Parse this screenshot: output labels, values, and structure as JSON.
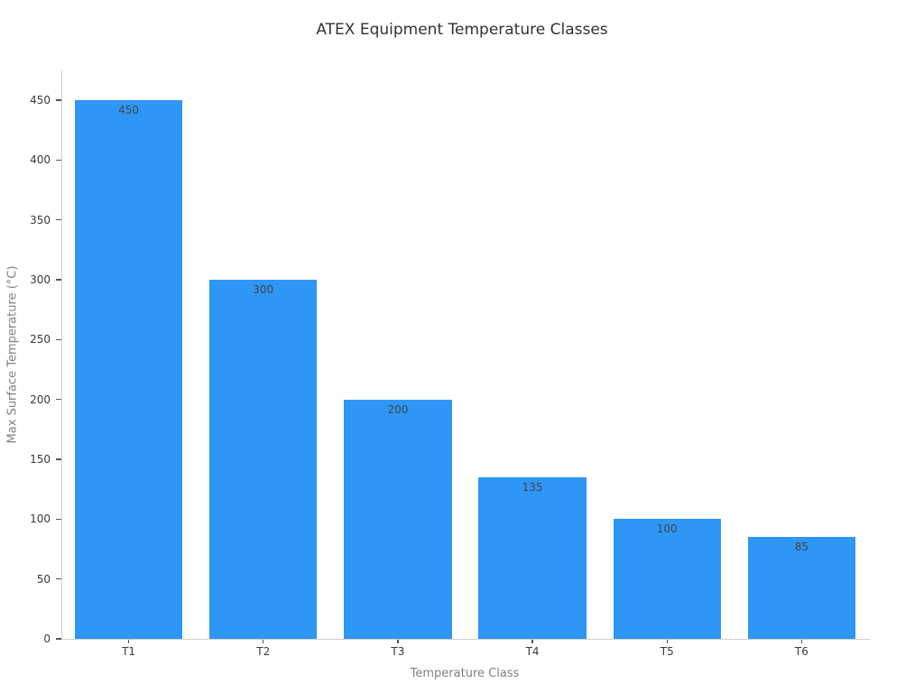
{
  "title": "ATEX Equipment Temperature Classes",
  "colors": {
    "bar": "#2e96f5",
    "background": "#ffffff",
    "title_text": "#323232",
    "tick_label": "#3a3a3a",
    "bar_value_label": "#454545",
    "axis_title": "#808080",
    "spine": "#cfcfcf",
    "tick_mark": "#555555"
  },
  "chart_data": {
    "type": "bar",
    "title": "ATEX Equipment Temperature Classes",
    "xlabel": "Temperature Class",
    "ylabel": "Max Surface Temperature (°C)",
    "categories": [
      "T1",
      "T2",
      "T3",
      "T4",
      "T5",
      "T6"
    ],
    "values": [
      450,
      300,
      200,
      135,
      100,
      85
    ],
    "bar_labels": [
      "450",
      "300",
      "200",
      "135",
      "100",
      "85"
    ],
    "yticks": [
      0,
      50,
      100,
      150,
      200,
      250,
      300,
      350,
      400,
      450
    ],
    "ylim": [
      0,
      475
    ],
    "grid": false,
    "legend": "none",
    "bar_color": "#2e96f5"
  }
}
